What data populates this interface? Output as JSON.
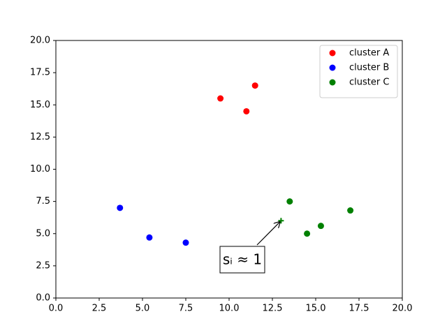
{
  "chart_data": {
    "type": "scatter",
    "series": [
      {
        "name": "cluster A",
        "color": "red",
        "x": [
          9.5,
          11.0,
          11.5
        ],
        "values": [
          15.5,
          14.5,
          16.5
        ]
      },
      {
        "name": "cluster B",
        "color": "blue",
        "x": [
          3.7,
          5.4,
          7.5
        ],
        "values": [
          7.0,
          4.7,
          4.3
        ]
      },
      {
        "name": "cluster C",
        "color": "green",
        "x": [
          13.5,
          14.5,
          15.3,
          17.0
        ],
        "values": [
          7.5,
          5.0,
          5.6,
          6.8
        ]
      }
    ],
    "annotation": {
      "text": "sᵢ ≈ 1",
      "x": 13,
      "y": 6,
      "color": "green"
    },
    "xlim": [
      0,
      20
    ],
    "ylim": [
      0,
      20
    ],
    "xticks": [
      {
        "value": 0,
        "label": "0.0"
      },
      2.5,
      {
        "value": 5,
        "label": "5.0"
      },
      7.5,
      {
        "value": 10,
        "label": "10.0"
      },
      12.5,
      {
        "value": 15,
        "label": "15.0"
      },
      17.5,
      {
        "value": 20,
        "label": "20.0"
      }
    ],
    "yticks": [
      {
        "value": 0,
        "label": "0.0"
      },
      2.5,
      {
        "value": 5,
        "label": "5.0"
      },
      7.5,
      {
        "value": 10,
        "label": "10.0"
      },
      12.5,
      {
        "value": 15,
        "label": "15.0"
      },
      17.5,
      {
        "value": 20,
        "label": "20.0"
      }
    ],
    "legend": "upper right"
  }
}
